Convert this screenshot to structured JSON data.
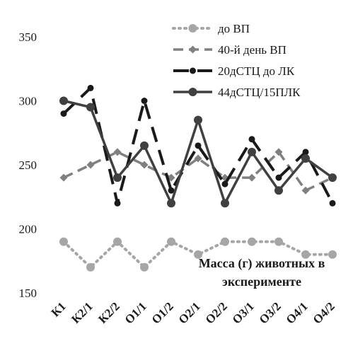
{
  "chart_data": {
    "type": "line",
    "categories": [
      "К1",
      "К2/1",
      "К2/2",
      "О1/1",
      "О1/2",
      "О2/1",
      "О2/2",
      "О3/1",
      "О3/2",
      "О4/1",
      "О4/2"
    ],
    "ylim": [
      150,
      350
    ],
    "yticks": [
      150,
      200,
      250,
      300,
      350
    ],
    "grid": false,
    "legend_position": "top-right",
    "annotation": [
      "Масса (г) животных в",
      "эксперименте"
    ],
    "series": [
      {
        "name": "до ВП",
        "color": "#a6a6a6",
        "dash": "dotted",
        "values": [
          190,
          170,
          190,
          170,
          190,
          180,
          190,
          190,
          190,
          180,
          180
        ]
      },
      {
        "name": "40-й день ВП",
        "color": "#808080",
        "dash": "dashed",
        "values": [
          240,
          250,
          260,
          250,
          240,
          255,
          240,
          240,
          260,
          230,
          240
        ]
      },
      {
        "name": "20дСТЦ до ЛК",
        "color": "#1a1a1a",
        "dash": "longdash",
        "values": [
          290,
          310,
          220,
          300,
          230,
          265,
          235,
          270,
          240,
          260,
          220
        ]
      },
      {
        "name": "44дСТЦ/15ПЛК",
        "color": "#404040",
        "dash": "solid",
        "values": [
          300,
          295,
          240,
          265,
          220,
          285,
          220,
          260,
          230,
          255,
          240
        ]
      }
    ]
  }
}
